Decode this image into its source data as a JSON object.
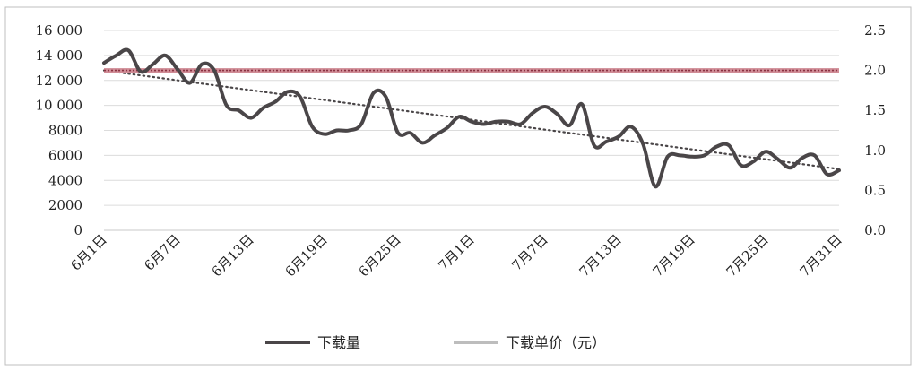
{
  "chart_data": {
    "type": "line",
    "title": "",
    "xlabel": "",
    "ylabel": "",
    "y2label": "",
    "x": [
      "6月1日",
      "6月2日",
      "6月3日",
      "6月4日",
      "6月5日",
      "6月6日",
      "6月7日",
      "6月8日",
      "6月9日",
      "6月10日",
      "6月11日",
      "6月12日",
      "6月13日",
      "6月14日",
      "6月15日",
      "6月16日",
      "6月17日",
      "6月18日",
      "6月19日",
      "6月20日",
      "6月21日",
      "6月22日",
      "6月23日",
      "6月24日",
      "6月25日",
      "6月26日",
      "6月27日",
      "6月28日",
      "6月29日",
      "6月30日",
      "7月1日",
      "7月2日",
      "7月3日",
      "7月4日",
      "7月5日",
      "7月6日",
      "7月7日",
      "7月8日",
      "7月9日",
      "7月10日",
      "7月11日",
      "7月12日",
      "7月13日",
      "7月14日",
      "7月15日",
      "7月16日",
      "7月17日",
      "7月18日",
      "7月19日",
      "7月20日",
      "7月21日",
      "7月22日",
      "7月23日",
      "7月24日",
      "7月25日",
      "7月26日",
      "7月27日",
      "7月28日",
      "7月29日",
      "7月30日",
      "7月31日"
    ],
    "x_ticks": [
      "6月1日",
      "6月7日",
      "6月13日",
      "6月19日",
      "6月25日",
      "7月1日",
      "7月7日",
      "7月13日",
      "7月19日",
      "7月25日",
      "7月31日"
    ],
    "y_left": {
      "ticks": [
        "0",
        "2000",
        "4000",
        "6000",
        "8000",
        "10 000",
        "12 000",
        "14 000",
        "16 000"
      ],
      "range": [
        0,
        16000
      ]
    },
    "y_right": {
      "ticks": [
        "0.0",
        "0.5",
        "1.0",
        "1.5",
        "2.0",
        "2.5"
      ],
      "range": [
        0,
        2.5
      ]
    },
    "grid": true,
    "legend_position": "bottom",
    "series": [
      {
        "name": "下载量",
        "axis": "left",
        "color": "#4a4648",
        "values": [
          13400,
          14000,
          14400,
          12700,
          13300,
          14000,
          12900,
          11800,
          13300,
          12800,
          10000,
          9600,
          9000,
          9800,
          10300,
          11100,
          10700,
          8300,
          7700,
          8000,
          8000,
          8500,
          11000,
          10700,
          7800,
          7800,
          7000,
          7600,
          8200,
          9100,
          8700,
          8500,
          8700,
          8700,
          8500,
          9400,
          9900,
          9300,
          8400,
          10100,
          6800,
          7100,
          7500,
          8300,
          6900,
          3500,
          5900,
          6000,
          5900,
          6000,
          6700,
          6800,
          5200,
          5500,
          6300,
          5700,
          5000,
          5800,
          6000,
          4500,
          4800
        ]
      },
      {
        "name": "下载单价（元）",
        "axis": "right",
        "color": "#d08c96",
        "values": [
          2.0,
          2.0,
          2.0,
          2.0,
          2.0,
          2.0,
          2.0,
          2.0,
          2.0,
          2.0,
          2.0,
          2.0,
          2.0,
          2.0,
          2.0,
          2.0,
          2.0,
          2.0,
          2.0,
          2.0,
          2.0,
          2.0,
          2.0,
          2.0,
          2.0,
          2.0,
          2.0,
          2.0,
          2.0,
          2.0,
          2.0,
          2.0,
          2.0,
          2.0,
          2.0,
          2.0,
          2.0,
          2.0,
          2.0,
          2.0,
          2.0,
          2.0,
          2.0,
          2.0,
          2.0,
          2.0,
          2.0,
          2.0,
          2.0,
          2.0,
          2.0,
          2.0,
          2.0,
          2.0,
          2.0,
          2.0,
          2.0,
          2.0,
          2.0,
          2.0,
          2.0
        ]
      }
    ],
    "trendline": {
      "series": "下载量",
      "type": "linear",
      "start": 12800,
      "end": 4900,
      "style": "dotted"
    }
  }
}
